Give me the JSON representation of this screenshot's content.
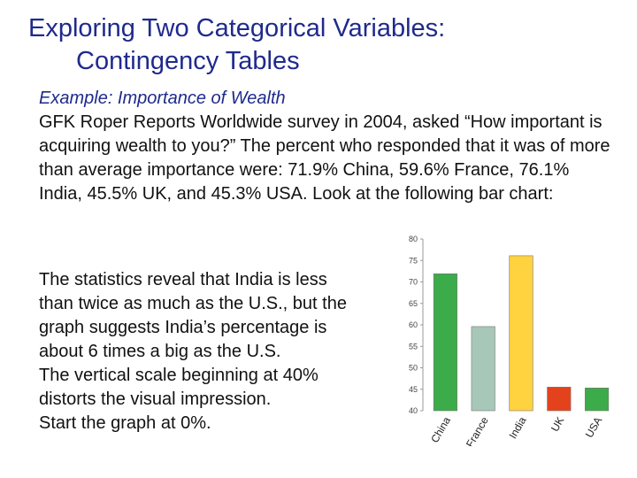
{
  "slide": {
    "title_line1": "Exploring Two Categorical Variables:",
    "title_line2": "Contingency Tables",
    "example_heading": "Example:  Importance of Wealth",
    "example_body": "GFK Roper Reports Worldwide survey in 2004, asked “How important is acquiring wealth to you?” The percent who responded that it was of more than average importance were: 71.9% China, 59.6% France, 76.1% India, 45.5% UK, and 45.3% USA.  Look at the following bar chart:",
    "stats_lines": [
      "The statistics reveal that India is less",
      "than twice as much as the U.S., but the",
      "graph suggests India’s percentage is",
      "about 6 times a big as the U.S.",
      "The vertical scale beginning at 40%",
      "distorts the visual impression.",
      "Start the graph at 0%."
    ]
  },
  "chart_data": {
    "type": "bar",
    "categories": [
      "China",
      "France",
      "India",
      "UK",
      "USA"
    ],
    "values": [
      71.9,
      59.6,
      76.1,
      45.5,
      45.3
    ],
    "colors": [
      "#3cab4a",
      "#a7c7b8",
      "#ffd23f",
      "#e4421c",
      "#3cab4a"
    ],
    "ylim": [
      40,
      80
    ],
    "yticks": [
      40,
      45,
      50,
      55,
      60,
      65,
      70,
      75,
      80
    ],
    "grid": false,
    "xlabel": "",
    "ylabel": "",
    "title": ""
  }
}
